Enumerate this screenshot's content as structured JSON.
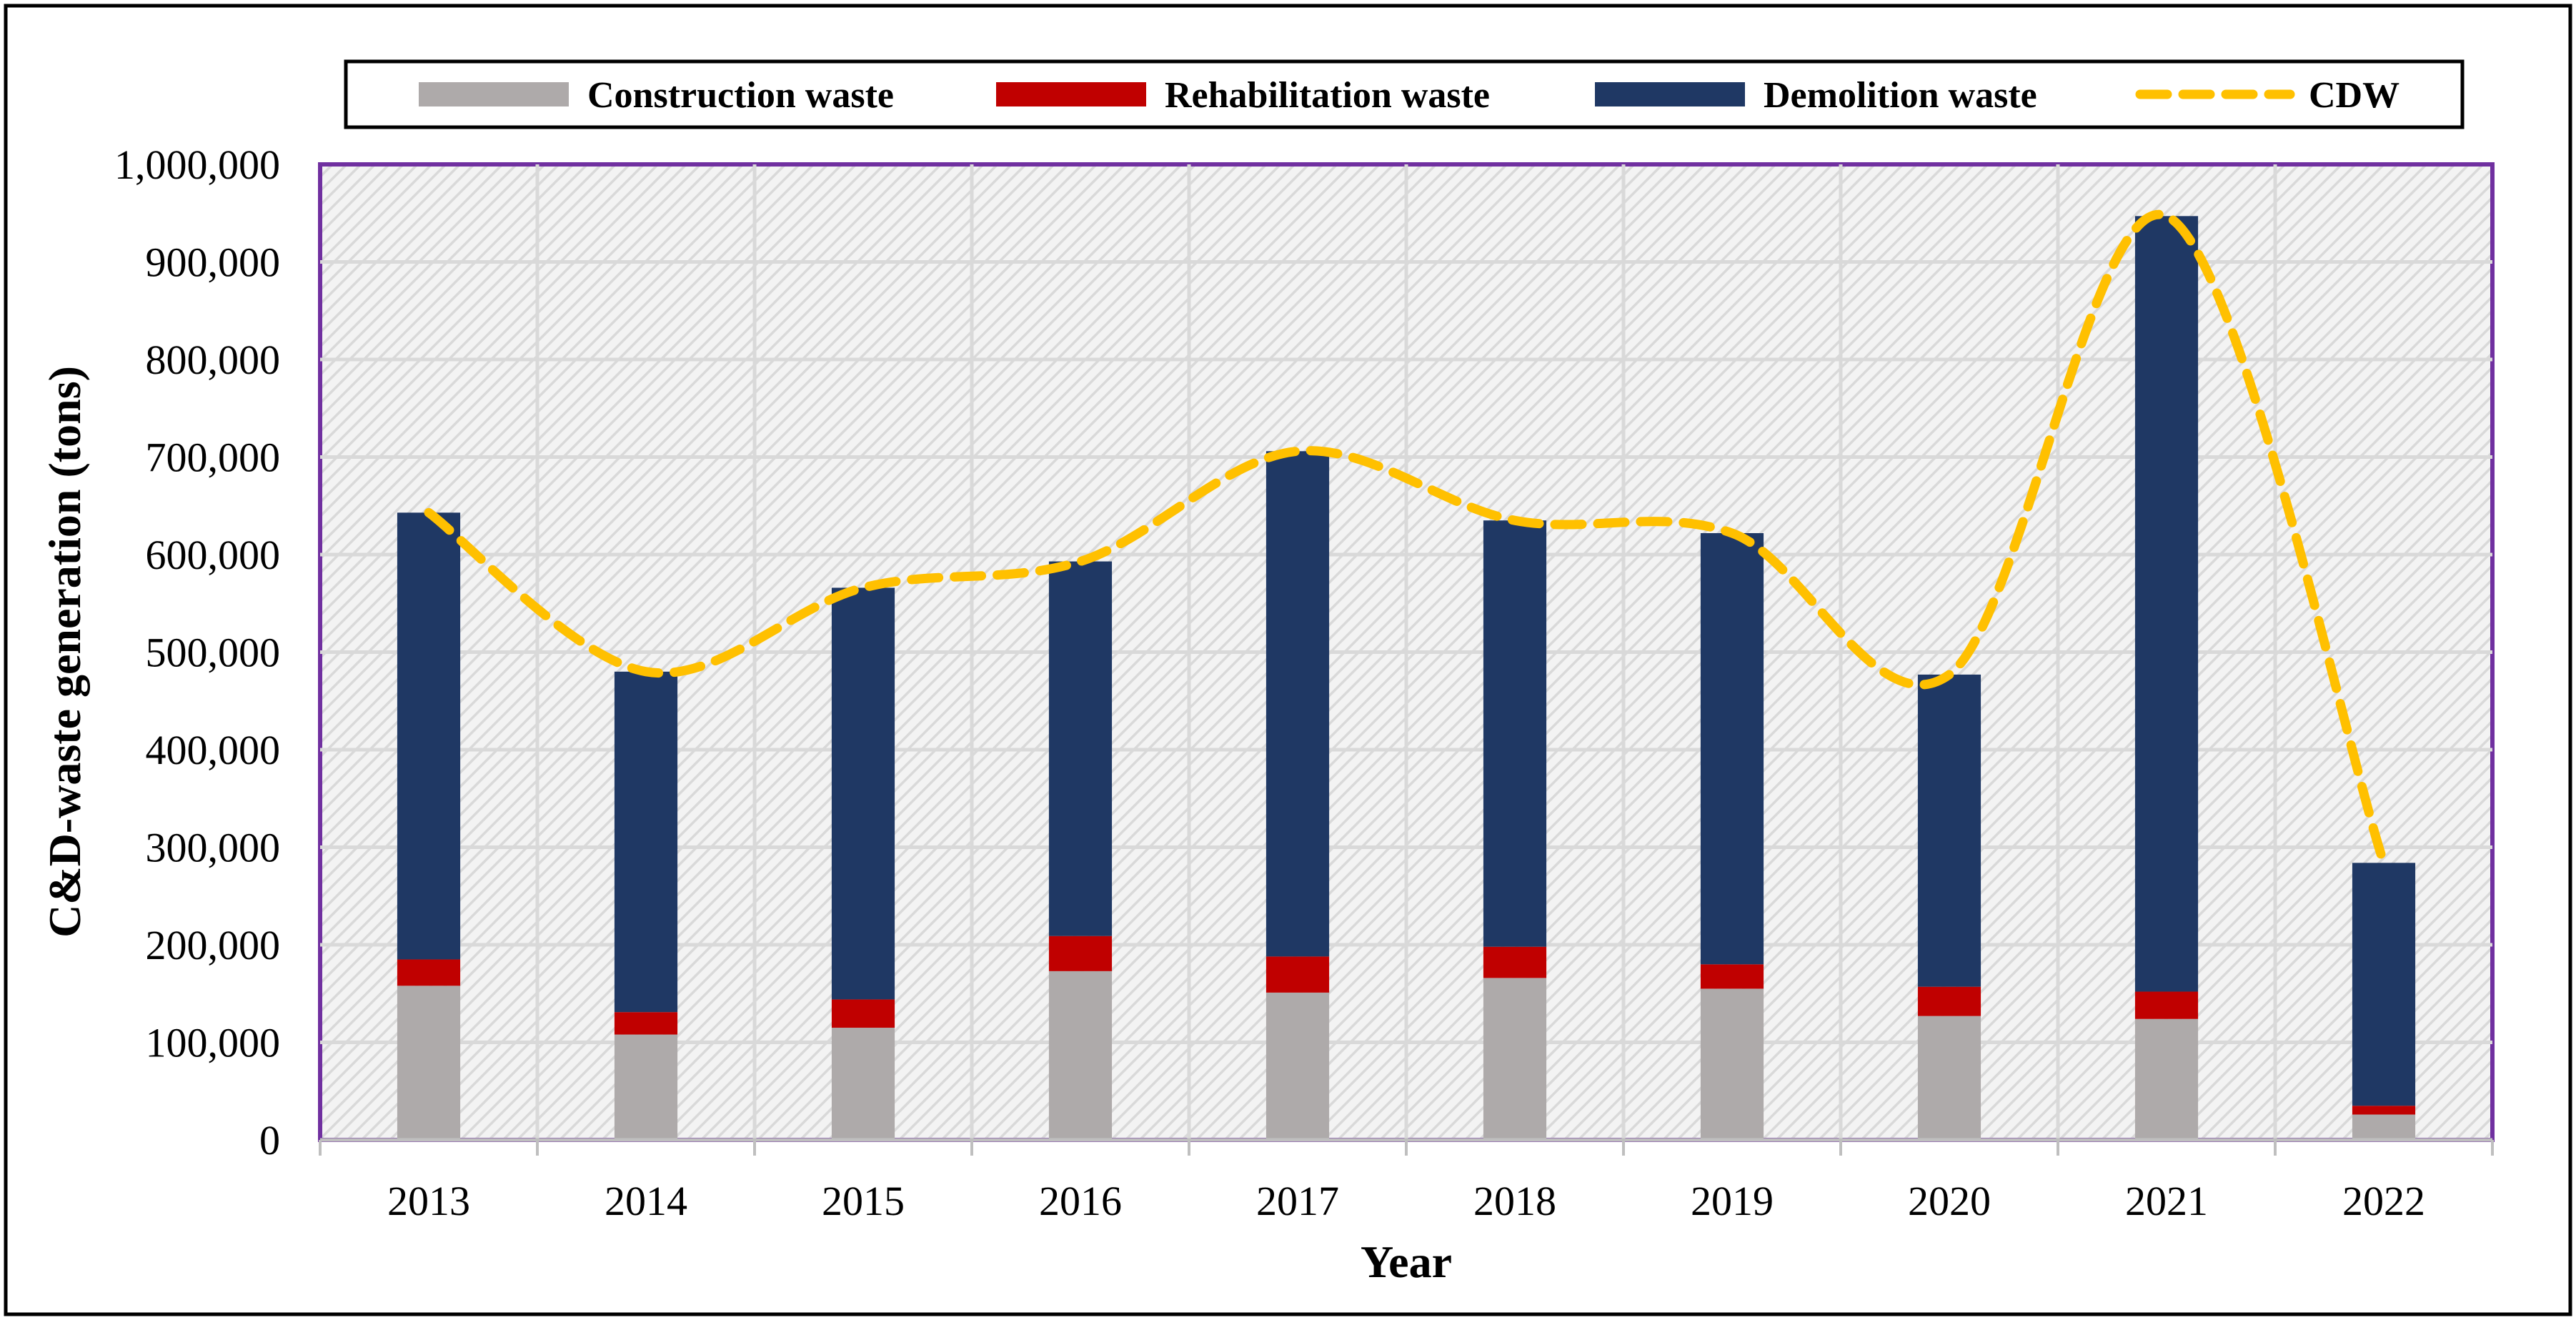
{
  "chart_data": {
    "type": "bar",
    "stacked": true,
    "categories": [
      "2013",
      "2014",
      "2015",
      "2016",
      "2017",
      "2018",
      "2019",
      "2020",
      "2021",
      "2022"
    ],
    "series": [
      {
        "name": "Construction waste",
        "kind": "bar",
        "color": "#aeaaaa",
        "values": [
          158000,
          108000,
          115000,
          173000,
          151000,
          166000,
          155000,
          127000,
          124000,
          26000
        ]
      },
      {
        "name": "Rehabilitation waste",
        "kind": "bar",
        "color": "#c00000",
        "values": [
          27000,
          23000,
          29000,
          36000,
          37000,
          32000,
          25000,
          30000,
          28000,
          9000
        ]
      },
      {
        "name": "Demolition waste",
        "kind": "bar",
        "color": "#1f3864",
        "values": [
          458000,
          349000,
          422000,
          384000,
          518000,
          437000,
          442000,
          320000,
          795000,
          249000
        ]
      },
      {
        "name": "CDW",
        "kind": "line",
        "style": "dashed-smooth",
        "color": "#ffc000",
        "values": [
          643000,
          480000,
          566000,
          593000,
          706000,
          635000,
          622000,
          477000,
          947000,
          284000
        ]
      }
    ],
    "xlabel": "Year",
    "ylabel": "C&D-waste generation (tons)",
    "ylim": [
      0,
      1000000
    ],
    "yticks": [
      0,
      100000,
      200000,
      300000,
      400000,
      500000,
      600000,
      700000,
      800000,
      900000,
      1000000
    ],
    "ytick_labels": [
      "0",
      "100,000",
      "200,000",
      "300,000",
      "400,000",
      "500,000",
      "600,000",
      "700,000",
      "800,000",
      "900,000",
      "1,000,000"
    ],
    "grid": true,
    "legend_position": "top"
  }
}
